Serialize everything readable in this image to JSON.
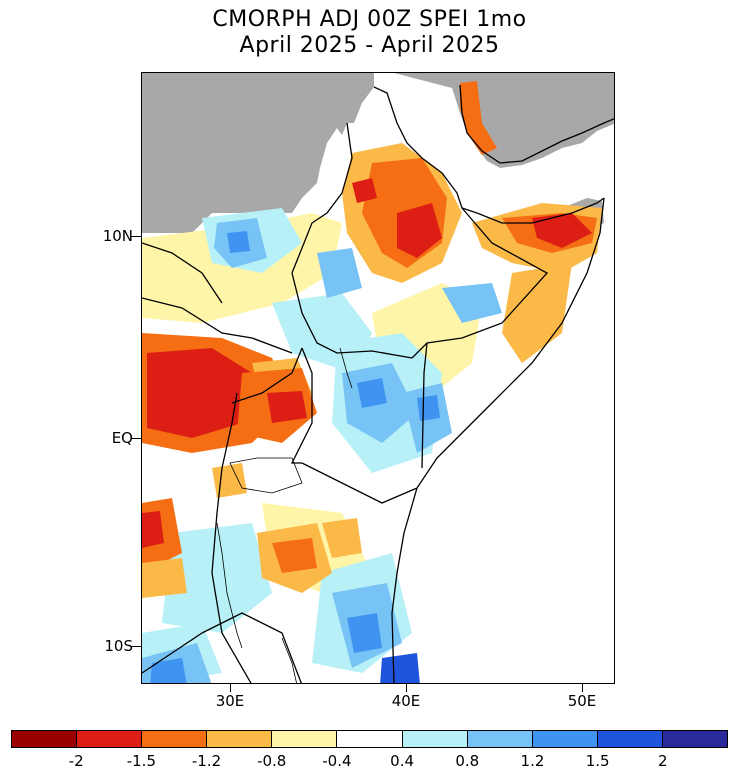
{
  "title": {
    "line1": "CMORPH ADJ 00Z SPEI 1mo",
    "line2": "April 2025 - April 2025"
  },
  "axes": {
    "y_labels": [
      "10N",
      "EQ",
      "10S"
    ],
    "x_labels": [
      "30E",
      "40E",
      "50E"
    ]
  },
  "colorbar": {
    "colors": [
      "#9b0000",
      "#dc1e14",
      "#f56e14",
      "#fbb948",
      "#fff5a8",
      "#ffffff",
      "#b8f0f8",
      "#78c3f5",
      "#3e94f0",
      "#1e55dc",
      "#2a2a9a"
    ],
    "labels": [
      "-2",
      "-1.5",
      "-1.2",
      "-0.8",
      "-0.4",
      "0.4",
      "0.8",
      "1.2",
      "1.5",
      "2"
    ]
  },
  "map": {
    "land_color": "#ffffff",
    "masked_color": "#a8a8a8",
    "border_color": "#000000"
  }
}
